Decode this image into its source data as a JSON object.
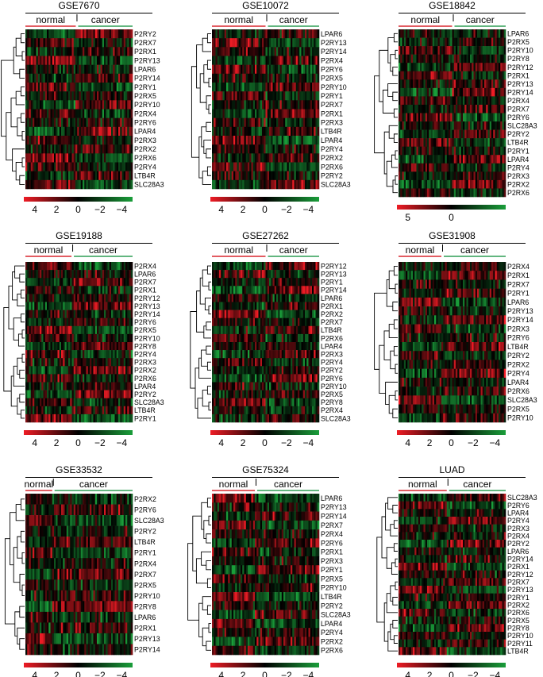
{
  "figure": {
    "group_labels": {
      "normal": "normal",
      "cancer": "cancer"
    },
    "colors": {
      "high": "#ee1c25",
      "mid": "#000000",
      "low": "#1a9e3a",
      "normal_bar": "#d9262e",
      "cancer_bar": "#2f9e55"
    }
  },
  "chart_data": [
    {
      "type": "heatmap",
      "title": "GSE7670",
      "color_scale": {
        "ticks": [
          "4",
          "2",
          "0",
          "−2",
          "−4"
        ],
        "range": [
          -4,
          4
        ]
      },
      "rows": [
        "P2RY2",
        "P2RX7",
        "P2RX1",
        "P2RY13",
        "LPAR6",
        "P2RY14",
        "P2RY1",
        "P2RX5",
        "P2RY10",
        "P2RX4",
        "P2RY6",
        "LPAR4",
        "P2RX3",
        "P2RX2",
        "P2RX6",
        "P2RY4",
        "LTB4R",
        "SLC28A3"
      ],
      "groups": [
        {
          "name": "normal",
          "fraction": 0.47
        },
        {
          "name": "cancer",
          "fraction": 0.53
        }
      ]
    },
    {
      "type": "heatmap",
      "title": "GSE10072",
      "color_scale": {
        "ticks": [
          "4",
          "2",
          "0",
          "−2",
          "−4"
        ],
        "range": [
          -4,
          4
        ]
      },
      "rows": [
        "LPAR6",
        "P2RY13",
        "P2RY14",
        "P2RX4",
        "P2RY6",
        "P2RX5",
        "P2RY10",
        "P2RY1",
        "P2RX7",
        "P2RX1",
        "P2RX3",
        "LTB4R",
        "LPAR4",
        "P2RY4",
        "P2RX2",
        "P2RX6",
        "P2RY2",
        "SLC28A3"
      ],
      "groups": [
        {
          "name": "normal",
          "fraction": 0.5
        },
        {
          "name": "cancer",
          "fraction": 0.5
        }
      ]
    },
    {
      "type": "heatmap",
      "title": "GSE18842",
      "color_scale": {
        "ticks": [
          "5",
          "0"
        ],
        "range": [
          -5,
          5
        ]
      },
      "rows": [
        "LPAR6",
        "P2RX5",
        "P2RY10",
        "P2RY8",
        "P2RY12",
        "P2RX1",
        "P2RY13",
        "P2RY14",
        "P2RX4",
        "P2RX7",
        "P2RY6",
        "SLC28A3",
        "P2RY2",
        "LTB4R",
        "P2RY1",
        "LPAR4",
        "P2RY4",
        "P2RX3",
        "P2RX2",
        "P2RX6"
      ],
      "groups": [
        {
          "name": "normal",
          "fraction": 0.5
        },
        {
          "name": "cancer",
          "fraction": 0.5
        }
      ]
    },
    {
      "type": "heatmap",
      "title": "GSE19188",
      "color_scale": {
        "ticks": [
          "4",
          "2",
          "0",
          "−2",
          "−4"
        ],
        "range": [
          -4,
          4
        ]
      },
      "rows": [
        "P2RX4",
        "LPAR6",
        "P2RX7",
        "P2RX1",
        "P2RY12",
        "P2RY13",
        "P2RY14",
        "P2RY6",
        "P2RX5",
        "P2RY10",
        "P2RY8",
        "P2RY4",
        "P2RX3",
        "P2RX2",
        "P2RX6",
        "LPAR4",
        "P2RY2",
        "SLC28A3",
        "LTB4R",
        "P2RY1"
      ],
      "groups": [
        {
          "name": "normal",
          "fraction": 0.43
        },
        {
          "name": "cancer",
          "fraction": 0.57
        }
      ]
    },
    {
      "type": "heatmap",
      "title": "GSE27262",
      "color_scale": {
        "ticks": [
          "4",
          "2",
          "0",
          "−2",
          "−4"
        ],
        "range": [
          -4,
          4
        ]
      },
      "rows": [
        "P2RY12",
        "P2RY13",
        "P2RY1",
        "P2RY14",
        "LPAR6",
        "P2RX1",
        "P2RX2",
        "P2RX7",
        "LTB4R",
        "P2RX6",
        "LPAR4",
        "P2RX3",
        "P2RY4",
        "P2RY2",
        "P2RY6",
        "P2RY10",
        "P2RX5",
        "P2RY8",
        "P2RX4",
        "SLC28A3"
      ],
      "groups": [
        {
          "name": "normal",
          "fraction": 0.5
        },
        {
          "name": "cancer",
          "fraction": 0.5
        }
      ]
    },
    {
      "type": "heatmap",
      "title": "GSE31908",
      "color_scale": {
        "ticks": [
          "4",
          "2",
          "0",
          "−2",
          "−4"
        ],
        "range": [
          -4,
          4
        ]
      },
      "rows": [
        "P2RX4",
        "P2RX1",
        "P2RX7",
        "P2RY1",
        "LPAR6",
        "P2RY13",
        "P2RY14",
        "P2RX3",
        "P2RY6",
        "LTB4R",
        "P2RY2",
        "P2RX2",
        "P2RY4",
        "LPAR4",
        "P2RX6",
        "SLC28A3",
        "P2RX5",
        "P2RY10"
      ],
      "groups": [
        {
          "name": "normal",
          "fraction": 0.4
        },
        {
          "name": "cancer",
          "fraction": 0.6
        }
      ]
    },
    {
      "type": "heatmap",
      "title": "GSE33532",
      "color_scale": {
        "ticks": [
          "4",
          "2",
          "0",
          "−2",
          "−4"
        ],
        "range": [
          -4,
          4
        ]
      },
      "rows": [
        "P2RX2",
        "P2RY6",
        "SLC28A3",
        "P2RY2",
        "LTB4R",
        "P2RY1",
        "P2RX4",
        "P2RX7",
        "P2RX5",
        "P2RY10",
        "P2RY8",
        "LPAR6",
        "P2RX1",
        "P2RY13",
        "P2RY14"
      ],
      "groups": [
        {
          "name": "normal",
          "fraction": 0.25
        },
        {
          "name": "cancer",
          "fraction": 0.75
        }
      ]
    },
    {
      "type": "heatmap",
      "title": "GSE75324",
      "color_scale": {
        "ticks": [
          "4",
          "2",
          "0",
          "−2",
          "−4"
        ],
        "range": [
          -4,
          4
        ]
      },
      "rows": [
        "LPAR6",
        "P2RY13",
        "P2RY14",
        "P2RX7",
        "P2RX4",
        "P2RY6",
        "P2RX1",
        "P2RX3",
        "P2RY1",
        "P2RX5",
        "P2RY10",
        "LTB4R",
        "P2RY2",
        "SLC28A3",
        "LPAR4",
        "P2RY4",
        "P2RX2",
        "P2RX6"
      ],
      "groups": [
        {
          "name": "normal",
          "fraction": 0.4
        },
        {
          "name": "cancer",
          "fraction": 0.6
        }
      ]
    },
    {
      "type": "heatmap",
      "title": "LUAD",
      "color_scale": {
        "ticks": [
          "4",
          "2",
          "0",
          "−2",
          "−4"
        ],
        "range": [
          -4,
          4
        ]
      },
      "rows": [
        "SLC28A3",
        "P2RY6",
        "LPAR4",
        "P2RY4",
        "P2RX3",
        "P2RX4",
        "P2RY2",
        "LPAR6",
        "P2RY14",
        "P2RX1",
        "P2RY12",
        "P2RX7",
        "P2RY13",
        "P2RY1",
        "P2RX2",
        "P2RX6",
        "P2RX5",
        "P2RY8",
        "P2RY10",
        "P2RY11",
        "LTB4R"
      ],
      "groups": [
        {
          "name": "normal",
          "fraction": 0.45
        },
        {
          "name": "cancer",
          "fraction": 0.55
        }
      ]
    }
  ]
}
